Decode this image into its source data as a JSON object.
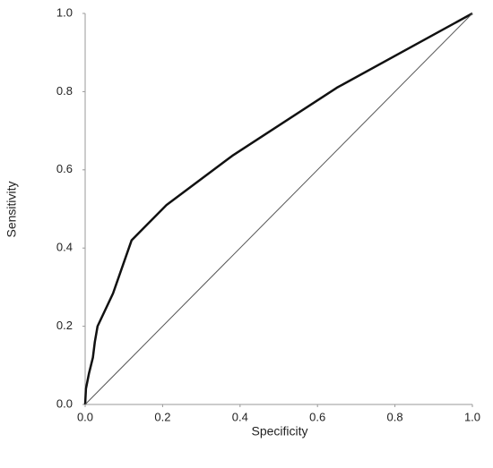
{
  "chart_data": {
    "type": "line",
    "xlabel": "Specificity",
    "ylabel": "Sensitivity",
    "xlim": [
      0,
      1
    ],
    "ylim": [
      0,
      1
    ],
    "xticks": [
      {
        "value": 0,
        "label": "0.0"
      },
      0.2,
      0.4,
      0.6,
      0.8,
      {
        "value": 1,
        "label": "1.0"
      }
    ],
    "yticks": [
      {
        "value": 0,
        "label": "0.0"
      },
      0.2,
      0.4,
      0.6,
      0.8,
      {
        "value": 1,
        "label": "1.0"
      }
    ],
    "grid": false,
    "series": [
      {
        "color": "#111111",
        "width": 2.5,
        "x": [
          0,
          0.002,
          0.01,
          0.02,
          0.025,
          0.032,
          0.072,
          0.12,
          0.21,
          0.38,
          0.65,
          1
        ],
        "values": [
          0,
          0.04,
          0.08,
          0.12,
          0.16,
          0.2,
          0.284,
          0.42,
          0.51,
          0.636,
          0.81,
          1
        ]
      },
      {
        "color": "#555555",
        "width": 1,
        "x": [
          0,
          1
        ],
        "values": [
          0,
          1
        ]
      }
    ]
  }
}
